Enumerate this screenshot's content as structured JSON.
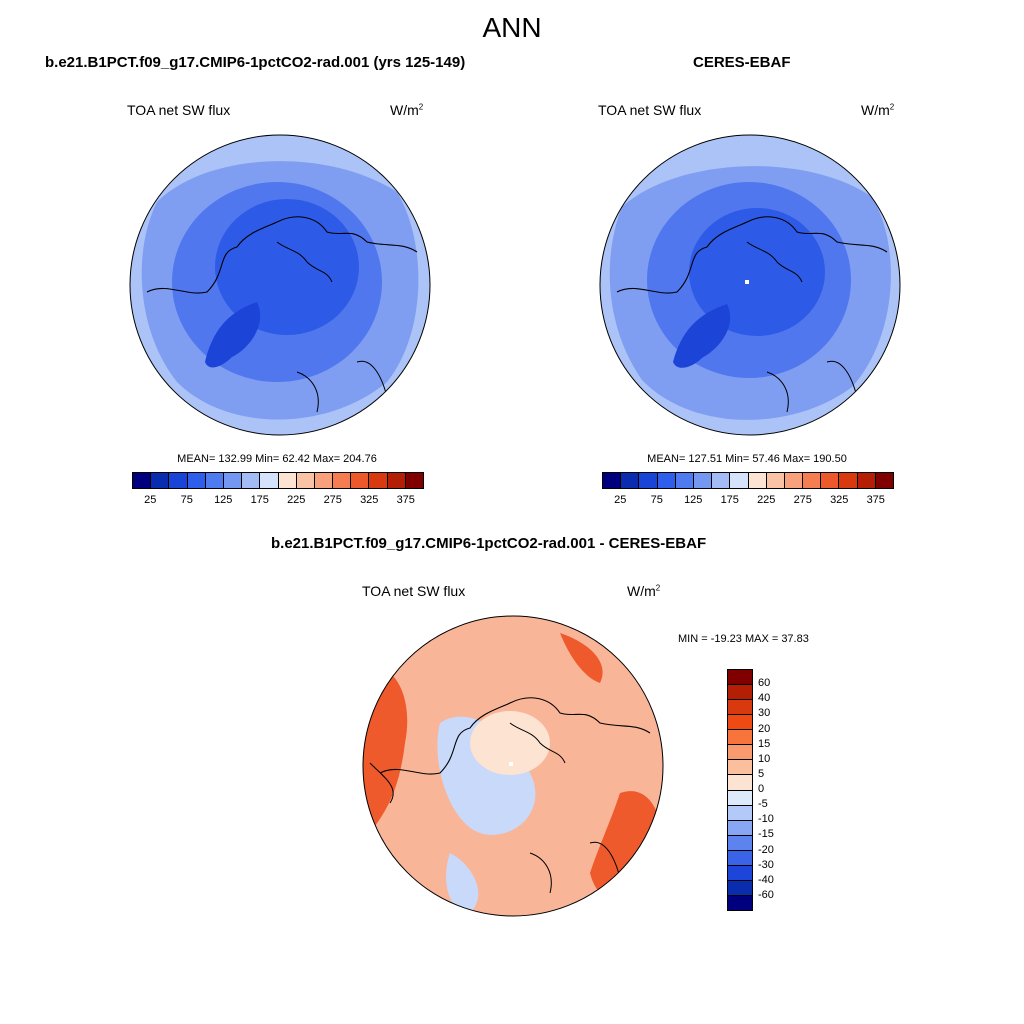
{
  "figure": {
    "season": "ANN",
    "units_base": "W/m",
    "units_exp": "2"
  },
  "panels": {
    "model": {
      "title": "b.e21.B1PCT.f09_g17.CMIP6-1pctCO2-rad.001 (yrs 125-149)",
      "variable": "TOA net SW flux",
      "stats": "MEAN= 132.99  Min=  62.42  Max= 204.76"
    },
    "obs": {
      "title": "CERES-EBAF",
      "variable": "TOA net SW flux",
      "stats": "MEAN= 127.51  Min=  57.46  Max= 190.50"
    },
    "diff": {
      "title": "b.e21.B1PCT.f09_g17.CMIP6-1pctCO2-rad.001 - CERES-EBAF",
      "variable": "TOA net SW flux",
      "stats": "MIN = -19.23 MAX =  37.83"
    }
  },
  "colorbars": {
    "abs": {
      "tick_labels": [
        "25",
        "75",
        "125",
        "175",
        "225",
        "275",
        "325",
        "375"
      ],
      "colors": [
        "#00007f",
        "#0a2db0",
        "#1a44d6",
        "#2f5fea",
        "#4f7bf0",
        "#7498f2",
        "#a4bcf6",
        "#d4e2fb",
        "#fde3d2",
        "#fbc3a6",
        "#f9a07c",
        "#f57d52",
        "#ec5a2c",
        "#d8390e",
        "#b31e05",
        "#800000"
      ]
    },
    "diff": {
      "labels": [
        "60",
        "40",
        "30",
        "20",
        "15",
        "10",
        "5",
        "0",
        "-5",
        "-10",
        "-15",
        "-20",
        "-30",
        "-40",
        "-60"
      ],
      "colors": [
        "#800000",
        "#b31e05",
        "#d8390e",
        "#f04a14",
        "#f7753d",
        "#f99a6f",
        "#fbbf9e",
        "#fde3d2",
        "#ddeafc",
        "#b3c9f7",
        "#87a6f3",
        "#5d84ee",
        "#3a63e8",
        "#1e45d9",
        "#0a2db0",
        "#00007f"
      ]
    }
  },
  "map_palette": {
    "ocean_model": "#abc3f6",
    "mid_model": "#7f9ef2",
    "inner_model": "#5077ee",
    "pole_model": "#2d5ae6",
    "greenland": "#1c45d8",
    "diff_base": "#f9b598",
    "diff_hot": "#ee5a2c",
    "diff_cool": "#c9d9fa",
    "diff_pale": "#fde3d2"
  },
  "map_features": {
    "pole_dot_obs": true,
    "pole_dot_diff": true
  }
}
